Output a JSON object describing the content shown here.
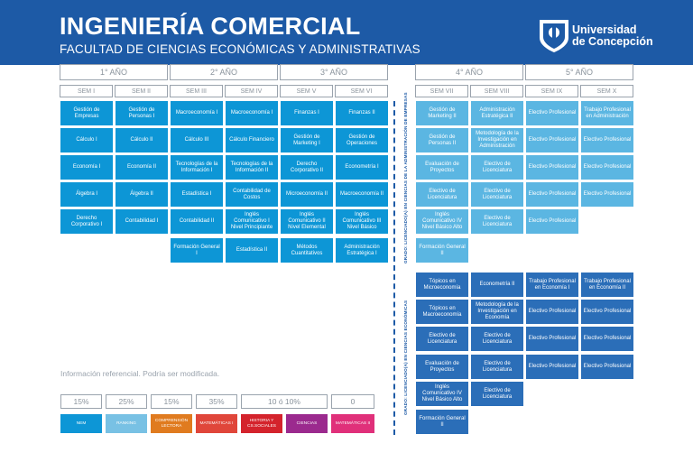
{
  "header": {
    "title": "INGENIERÍA COMERCIAL",
    "subtitle": "FACULTAD DE CIENCIAS ECONÓMICAS Y ADMINISTRATIVAS",
    "logo_line1": "Universidad",
    "logo_line2": "de Concepción"
  },
  "years": [
    "1° AÑO",
    "2° AÑO",
    "3° AÑO",
    "4° AÑO",
    "5° AÑO"
  ],
  "semesters": [
    "SEM I",
    "SEM II",
    "SEM III",
    "SEM IV",
    "SEM V",
    "SEM VI",
    "SEM VII",
    "SEM VIII",
    "SEM IX",
    "SEM X"
  ],
  "courses": {
    "sem1": [
      "Gestión de Empresas",
      "Cálculo I",
      "Economía I",
      "Álgebra I",
      "Derecho Corporativo I"
    ],
    "sem2": [
      "Gestión de Personas I",
      "Cálculo II",
      "Economía II",
      "Álgebra II",
      "Contabilidad I"
    ],
    "sem3": [
      "Macroeconomía I",
      "Cálculo III",
      "Tecnologías de la Información I",
      "Estadística I",
      "Contabilidad II",
      "Formación General I"
    ],
    "sem4": [
      "Macroeconomía I",
      "Cálculo Financiero",
      "Tecnologías de la Información II",
      "Contabilidad de Costos",
      "Inglés Comunicativo I Nivel Principiante",
      "Estadística II"
    ],
    "sem5": [
      "Finanzas I",
      "Gestión de Marketing I",
      "Derecho Corporativo II",
      "Microeconomía II",
      "Inglés Comunicativo II Nivel Elemental",
      "Métodos Cuantitativos"
    ],
    "sem6": [
      "Finanzas II",
      "Gestión de Operaciones",
      "Econometría I",
      "Macroeconomía II",
      "Inglés Comunicativo III Nivel Básico",
      "Administración Estratégica I"
    ],
    "sem7_top": [
      "Gestión de Marketing II",
      "Gestión de Personas II",
      "Evaluación de Proyectos",
      "Electivo de Licenciatura",
      "Inglés Comunicativo IV Nivel Básico Alto",
      "Formación General II"
    ],
    "sem8_top": [
      "Administración Estratégica II",
      "Metodología de la Investigación en Administración",
      "Electivo de Licenciatura",
      "Electivo de Licenciatura",
      "Electivo de Licenciatura"
    ],
    "sem9_top": [
      "Electivo Profesional",
      "Electivo Profesional",
      "Electivo Profesional",
      "Electivo Profesional",
      "Electivo Profesional"
    ],
    "sem10_top": [
      "Trabajo Profesional en Administración",
      "Electivo Profesional",
      "Electivo Profesional",
      "Electivo Profesional"
    ],
    "sem7_bot": [
      "Tópicos en Microeconomía",
      "Tópicos en Macroeconomía",
      "Electivo de Licenciatura",
      "Evaluación de Proyectos",
      "Inglés Comunicativo IV Nivel Básico Alto",
      "Formación General II"
    ],
    "sem8_bot": [
      "Econometría II",
      "Metodología de la Investigación en Economía",
      "Electivo de Licenciatura",
      "Electivo de Licenciatura",
      "Electivo de Licenciatura"
    ],
    "sem9_bot": [
      "Trabajo Profesional en Economía I",
      "Electivo Profesional",
      "Electivo Profesional",
      "Electivo Profesional"
    ],
    "sem10_bot": [
      "Trabajo Profesional en Economía II",
      "Electivo Profesional",
      "Electivo Profesional",
      "Electivo Profesional"
    ]
  },
  "side_labels": {
    "top": "GRADO: LICENCIADO(A) EN CIENCIAS DE LA ADMINISTRACIÓN DE EMPRESAS",
    "bottom": "GRADO: LICENCIADO(A) EN CIENCIAS ECONÓMICAS"
  },
  "note": "Información referencial. Podría ser modificada.",
  "weights": [
    "15%",
    "25%",
    "15%",
    "35%",
    "10 ó 10%",
    "0"
  ],
  "legend": [
    {
      "label": "NEM",
      "color": "#0d96d6"
    },
    {
      "label": "RANKING",
      "color": "#78c1e4"
    },
    {
      "label": "COMPRENSIÓN LECTORA",
      "color": "#e07b1f"
    },
    {
      "label": "MATEMÁTICAS I",
      "color": "#e0463a"
    },
    {
      "label": "HISTORIA Y CS.SOCIALES",
      "color": "#d4232c"
    },
    {
      "label": "CIENCIAS",
      "color": "#9b2a8e"
    },
    {
      "label": "MATEMÁTICAS II",
      "color": "#e0307a"
    }
  ]
}
